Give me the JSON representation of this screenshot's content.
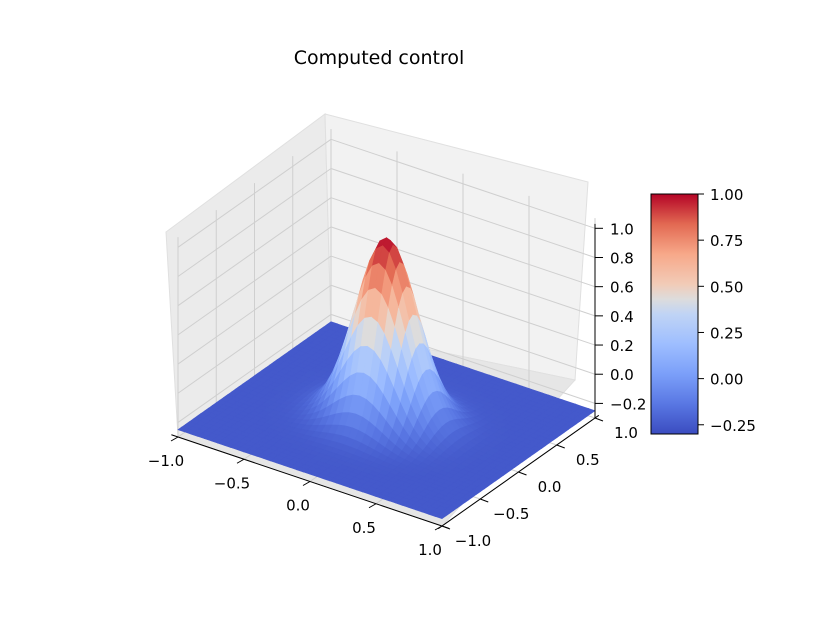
{
  "chart_data": {
    "type": "surface",
    "title": "Computed control",
    "x_range": [
      -1.0,
      1.0
    ],
    "y_range": [
      -1.0,
      1.0
    ],
    "z_range": [
      -0.3,
      1.0
    ],
    "x_ticks": [
      "−1.0",
      "−0.5",
      "0.0",
      "0.5",
      "1.0"
    ],
    "x_tick_values": [
      -1.0,
      -0.5,
      0.0,
      0.5,
      1.0
    ],
    "y_ticks": [
      "−1.0",
      "−0.5",
      "0.0",
      "0.5",
      "1.0"
    ],
    "y_tick_values": [
      -1.0,
      -0.5,
      0.0,
      0.5,
      1.0
    ],
    "z_ticks": [
      "−0.2",
      "0.0",
      "0.2",
      "0.4",
      "0.6",
      "0.8",
      "1.0"
    ],
    "z_tick_values": [
      -0.2,
      0.0,
      0.2,
      0.4,
      0.6,
      0.8,
      1.0
    ],
    "surface_peak": {
      "x": 0.0,
      "y": 0.0,
      "z": 1.0
    },
    "surface_min_value": -0.25,
    "colormap": "coolwarm",
    "colorbar": {
      "min": -0.3,
      "max": 1.0,
      "ticks": [
        "1.00",
        "0.75",
        "0.50",
        "0.25",
        "0.00",
        "−0.25"
      ],
      "tick_values": [
        1.0,
        0.75,
        0.5,
        0.25,
        0.0,
        -0.25
      ]
    },
    "grid": true
  }
}
